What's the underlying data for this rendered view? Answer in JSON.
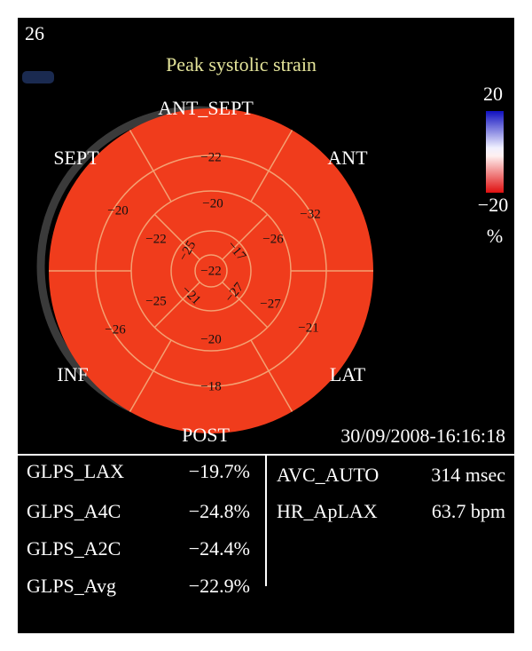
{
  "header": {
    "frame": "26",
    "title": "Peak systolic strain"
  },
  "colorbar": {
    "max_label": "20",
    "min_label": "−20",
    "unit": "%"
  },
  "bullseye": {
    "wall_labels": [
      "ANT_SEPT",
      "ANT",
      "LAT",
      "POST",
      "INF",
      "SEPT"
    ],
    "basal": [
      "−22",
      "−32",
      "−21",
      "−18",
      "−26",
      "−20"
    ],
    "mid": [
      "−20",
      "−26",
      "−27",
      "−20",
      "−25",
      "−22"
    ],
    "apical": [
      "−25",
      "−17",
      "−27",
      "−21"
    ],
    "apex": "−22"
  },
  "timestamp": "30/09/2008-16:16:18",
  "measurements": {
    "left": [
      {
        "name": "GLPS_LAX",
        "value": "−19.7%"
      },
      {
        "name": "GLPS_A4C",
        "value": "−24.8%"
      },
      {
        "name": "GLPS_A2C",
        "value": "−24.4%"
      },
      {
        "name": "GLPS_Avg",
        "value": "−22.9%"
      }
    ],
    "right": [
      {
        "name": "AVC_AUTO",
        "value": "314 msec"
      },
      {
        "name": "HR_ApLAX",
        "value": "63.7 bpm"
      }
    ]
  }
}
